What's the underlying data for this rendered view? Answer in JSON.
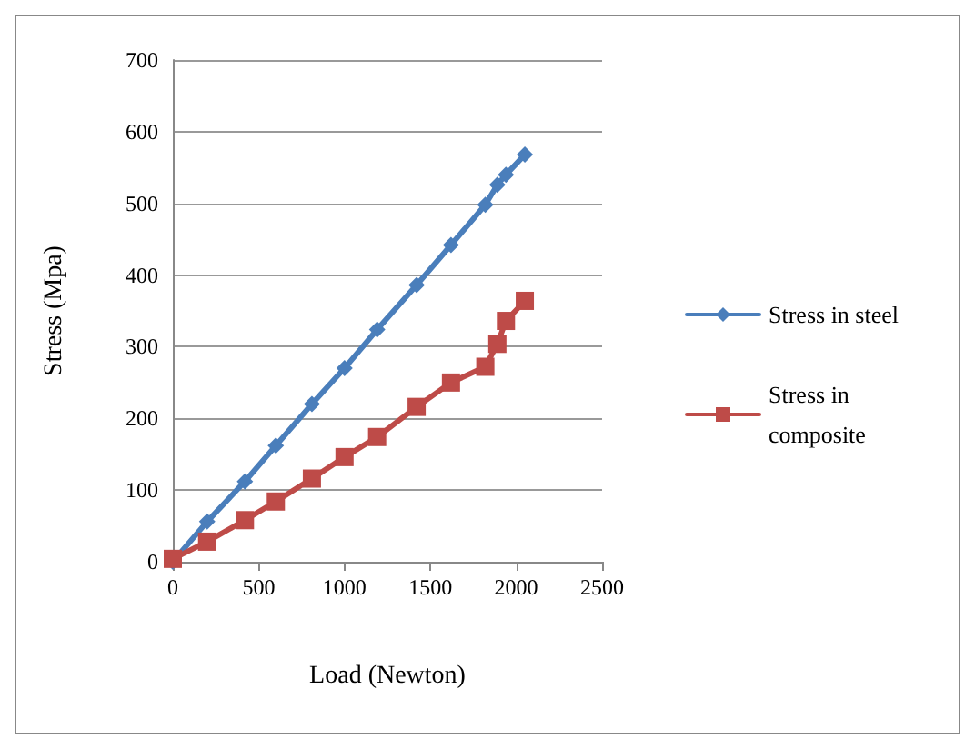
{
  "chart_data": {
    "type": "line",
    "xlabel": "Load (Newton)",
    "ylabel": "Stress (Mpa)",
    "x": [
      0,
      200,
      420,
      600,
      810,
      1000,
      1190,
      1420,
      1620,
      1820,
      1890,
      1940,
      2050
    ],
    "series": [
      {
        "name": "Stress in steel",
        "color": "#4a7ebb",
        "marker": "diamond",
        "values": [
          0,
          56,
          112,
          162,
          220,
          270,
          324,
          386,
          442,
          498,
          526,
          540,
          568
        ]
      },
      {
        "name": "Stress in composite",
        "color": "#be4b48",
        "marker": "square",
        "values": [
          4,
          28,
          58,
          84,
          116,
          146,
          174,
          216,
          250,
          272,
          304,
          336,
          364
        ]
      }
    ],
    "xlim": [
      0,
      2500
    ],
    "xticks": [
      0,
      500,
      1000,
      1500,
      2000,
      2500
    ],
    "ylim": [
      0,
      700
    ],
    "yticks": [
      0,
      100,
      200,
      300,
      400,
      500,
      600,
      700
    ],
    "grid": "y",
    "legend": "right",
    "line_style": "solid"
  }
}
